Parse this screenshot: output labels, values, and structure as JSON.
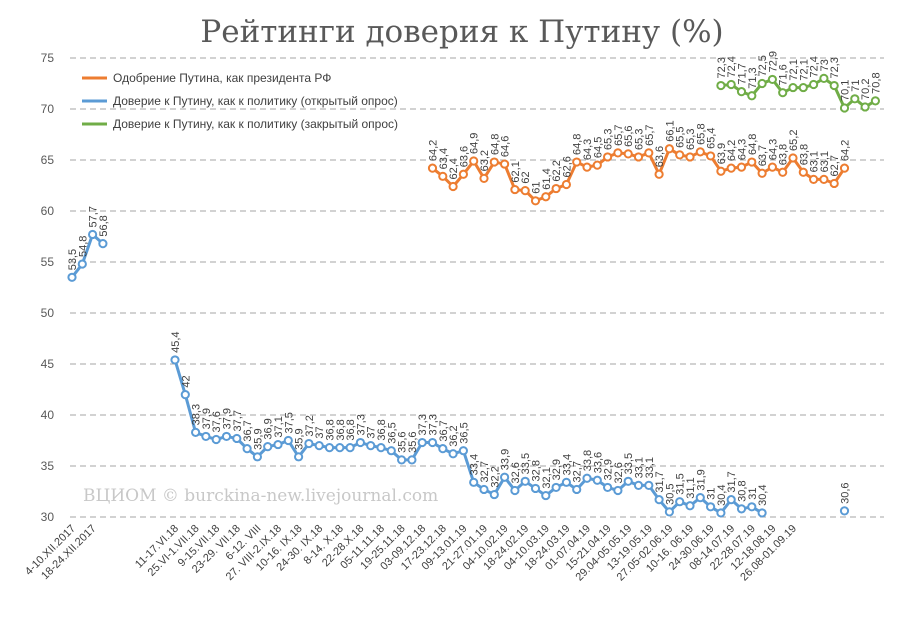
{
  "chart_data": {
    "type": "line",
    "title": "Рейтинги доверия к Путину (%)",
    "watermark": "ВЦИОМ © burckina-new.livejournal.com",
    "ylim": [
      30,
      75
    ],
    "yticks": [
      30,
      35,
      40,
      45,
      50,
      55,
      60,
      65,
      70,
      75
    ],
    "grid": "horizontal-dashed",
    "legend": "top-left",
    "x_labels": [
      "4-10.XII.2017",
      "18-24.XII.2017",
      "11-17.VI.18",
      "25.VI-1.VII.18",
      "9-15.VII.18",
      "23-29. VII.18",
      "6-12. VIII",
      "27. VIII-2.IX.18",
      "10-16. IX.18",
      "24-30. IX.18",
      "8-14. X.18",
      "22-28.X.18",
      "05-11.11.18",
      "19-25.11.18",
      "03-09.12.18",
      "17-23.12.18",
      "09-13.01.19",
      "21-27.01.19",
      "04-10.02.19",
      "18-24.02.19",
      "04-10.03.19",
      "18-24.03.19",
      "01-07.04.19",
      "15-21.04.19",
      "29.04-05.05.19",
      "13-19.05.19",
      "27.05-02.06.19",
      "10-16. 06.19",
      "24-30.06.19",
      "08-14.07.19",
      "22-28.07.19",
      "12-18.08.19",
      "26.08-01.09.19"
    ],
    "series": [
      {
        "name": "Одобрение Путина, как президента РФ",
        "color": "#ED7D31",
        "start_index": 35,
        "values": [
          64.2,
          63.4,
          62.4,
          63.6,
          64.9,
          63.2,
          64.8,
          64.6,
          62.1,
          62,
          61,
          61.4,
          62.2,
          62.6,
          64.8,
          64.3,
          64.5,
          65.3,
          65.7,
          65.6,
          65.3,
          65.7,
          63.6,
          66.1,
          65.5,
          65.3,
          65.8,
          65.4,
          63.9,
          64.2,
          64.3,
          64.8,
          63.7,
          64.3,
          63.8,
          65.2,
          63.8,
          63.1,
          63.1,
          62.7,
          64.2
        ]
      },
      {
        "name": "Доверие к Путину, как к политику (открытый опрос)",
        "color": "#5B9BD5",
        "segments": [
          {
            "start_index": 0,
            "values": [
              53.5,
              54.8,
              57.7,
              56.8
            ]
          },
          {
            "start_index": 10,
            "values": [
              45.4,
              42,
              38.3,
              37.9,
              37.6,
              37.9,
              37.7,
              36.7,
              35.9,
              36.9,
              37.1,
              37.5,
              35.9,
              37.2,
              37,
              36.8,
              36.8,
              36.8,
              37.3,
              37,
              36.8,
              36.5,
              35.6,
              35.6,
              37.3,
              37.3,
              36.7,
              36.2,
              36.5,
              33.4,
              32.7,
              32.2,
              33.9,
              32.6,
              33.5,
              32.8,
              32.1,
              32.9,
              33.4,
              32.7,
              33.8,
              33.6,
              32.9,
              32.6,
              33.5,
              33.1,
              33.1,
              31.7,
              30.5,
              31.5,
              31.1,
              31.9,
              31,
              30.4,
              31.7,
              30.8,
              31,
              30.4
            ]
          },
          {
            "start_index": 75,
            "values": [
              30.6
            ]
          }
        ]
      },
      {
        "name": "Доверие к Путину, как к политику (закрытый опрос)",
        "color": "#70AD47",
        "start_index": 63,
        "values": [
          72.3,
          72.4,
          71.7,
          71.3,
          72.5,
          72.9,
          71.6,
          72.1,
          72.1,
          72.4,
          73,
          72.3,
          70.1,
          71,
          70.2,
          70.8
        ]
      }
    ]
  }
}
